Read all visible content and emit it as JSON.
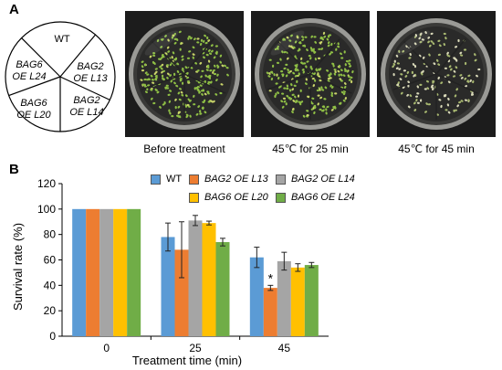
{
  "panels": {
    "a_label": "A",
    "b_label": "B"
  },
  "plate_map": {
    "sectors": [
      "WT",
      "BAG2 OE L13",
      "BAG2 OE L14",
      "BAG6 OE L20",
      "BAG6 OE L24"
    ],
    "sector_lines": [
      [
        "WT"
      ],
      [
        "BAG2",
        "OE L13"
      ],
      [
        "BAG2",
        "OE L14"
      ],
      [
        "BAG6",
        "OE L20"
      ],
      [
        "BAG6",
        "OE L24"
      ]
    ]
  },
  "photos": [
    {
      "caption": "Before treatment",
      "seedling_density": "dense"
    },
    {
      "caption": "45℃ for 25 min",
      "seedling_density": "dense"
    },
    {
      "caption": "45℃ for 45 min",
      "seedling_density": "sparse"
    }
  ],
  "chart_data": {
    "type": "bar",
    "categories": [
      "0",
      "25",
      "45"
    ],
    "xlabel": "Treatment time (min)",
    "ylabel": "Survival rate (%)",
    "ylim": [
      0,
      120
    ],
    "yticks": [
      0,
      20,
      40,
      60,
      80,
      100,
      120
    ],
    "grid": false,
    "legend_position": "top",
    "series": [
      {
        "name": "WT",
        "color": "#5b9bd5",
        "values": [
          100,
          78,
          62
        ],
        "errors": [
          0,
          11,
          8
        ]
      },
      {
        "name": "BAG2 OE L13",
        "color": "#ed7d31",
        "values": [
          100,
          68,
          38
        ],
        "errors": [
          0,
          22,
          2
        ]
      },
      {
        "name": "BAG2 OE L14",
        "color": "#a5a5a5",
        "values": [
          100,
          91,
          59
        ],
        "errors": [
          0,
          4,
          7
        ]
      },
      {
        "name": "BAG6 OE L20",
        "color": "#ffc000",
        "values": [
          100,
          89,
          54
        ],
        "errors": [
          0,
          1.5,
          3
        ]
      },
      {
        "name": "BAG6 OE L24",
        "color": "#70ad47",
        "values": [
          100,
          74,
          56
        ],
        "errors": [
          0,
          3,
          2
        ]
      }
    ],
    "annotations": [
      {
        "text": "*",
        "series": "BAG2 OE L13",
        "category": "45"
      }
    ]
  }
}
